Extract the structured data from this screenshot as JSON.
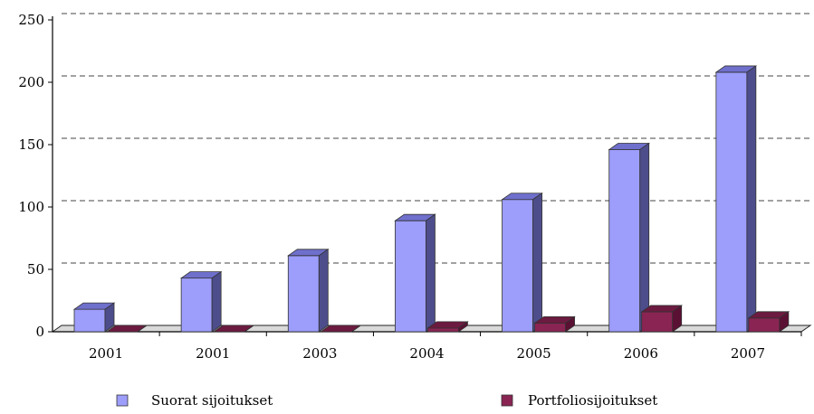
{
  "chart_data": {
    "type": "bar",
    "title": "",
    "xlabel": "",
    "ylabel": "",
    "categories": [
      "2001",
      "2001",
      "2003",
      "2004",
      "2005",
      "2006",
      "2007"
    ],
    "series": [
      {
        "name": "Suorat sijoitukset",
        "values": [
          18,
          43,
          61,
          89,
          106,
          146,
          208
        ],
        "color": "#9d9dfb",
        "side_color": "#4d4d8c",
        "top_color": "#6f6fcc"
      },
      {
        "name": "Portfoliosijoitukset",
        "values": [
          0,
          0,
          0,
          3,
          7,
          16,
          11
        ],
        "color": "#8a2453",
        "side_color": "#5a1033",
        "top_color": "#6d1a40"
      }
    ],
    "yticks": [
      "0",
      "50",
      "100",
      "150",
      "200",
      "250"
    ],
    "ylim": [
      0,
      250
    ],
    "grid": true,
    "legend": "bottom"
  }
}
